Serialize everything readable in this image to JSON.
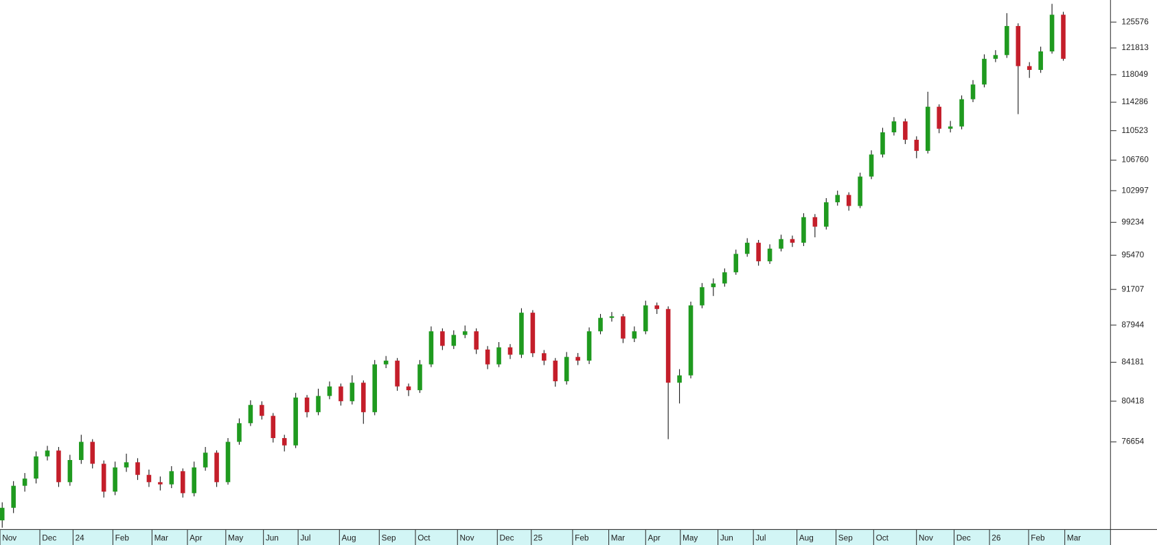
{
  "chart_data": {
    "type": "candlestick",
    "log_scale": true,
    "up_color": "#1f9a1f",
    "down_color": "#c41e2a",
    "ylim": [
      69210,
      128880
    ],
    "yticks": [
      76654,
      80418,
      84181,
      87944,
      91707,
      95470,
      99234,
      102997,
      106760,
      110523,
      114286,
      118049,
      121813,
      125576
    ],
    "x_axis_labels": [
      "Nov",
      "Dec",
      "24",
      "Feb",
      "Mar",
      "Apr",
      "May",
      "Jun",
      "Jul",
      "Aug",
      "Sep",
      "Oct",
      "Nov",
      "Dec",
      "25",
      "Feb",
      "Mar",
      "Apr",
      "May",
      "Jun",
      "Jul",
      "Aug",
      "Sep",
      "Oct",
      "Nov",
      "Dec",
      "26",
      "Feb",
      "Mar"
    ],
    "open": [
      69900,
      70940,
      72800,
      73420,
      75360,
      75880,
      73110,
      75040,
      76660,
      74710,
      72300,
      74390,
      74840,
      73740,
      73110,
      72920,
      74060,
      72170,
      74390,
      75690,
      73110,
      76660,
      78360,
      80060,
      79040,
      77000,
      76340,
      80760,
      79380,
      80910,
      81820,
      80410,
      82180,
      79380,
      83970,
      84340,
      81820,
      81460,
      83970,
      87300,
      85820,
      86930,
      87300,
      85450,
      83970,
      85670,
      84930,
      89230,
      85080,
      84340,
      82320,
      84710,
      84340,
      87300,
      88690,
      88850,
      86560,
      87300,
      90000,
      89620,
      82180,
      82890,
      90000,
      91950,
      92350,
      93570,
      95620,
      96880,
      94790,
      96210,
      97300,
      96880,
      99840,
      98730,
      101600,
      102480,
      101160,
      104720,
      107470,
      110310,
      111740,
      109350,
      107930,
      113680,
      110780,
      111070,
      114690,
      116690,
      120270,
      120800,
      125000,
      119240,
      118710,
      121320,
      126670
    ],
    "high": [
      71400,
      73200,
      73900,
      75800,
      76300,
      76200,
      75500,
      77300,
      76900,
      75000,
      74900,
      75600,
      75200,
      74200,
      73600,
      74500,
      74300,
      74900,
      76200,
      75900,
      77000,
      78800,
      80500,
      80400,
      79300,
      77300,
      81200,
      81000,
      81600,
      82300,
      82100,
      82900,
      82400,
      84400,
      84800,
      84600,
      82100,
      84400,
      87800,
      87600,
      87400,
      87900,
      87600,
      85800,
      86200,
      86000,
      89700,
      89500,
      85400,
      84600,
      85200,
      85100,
      87700,
      89100,
      89300,
      89100,
      87800,
      90500,
      90300,
      89900,
      83500,
      90400,
      92400,
      92900,
      94000,
      96100,
      97400,
      97200,
      96700,
      97800,
      97700,
      100300,
      100200,
      102100,
      103000,
      102800,
      105200,
      108000,
      110900,
      112300,
      112100,
      109800,
      115700,
      114000,
      111800,
      115200,
      117300,
      120900,
      121500,
      126900,
      125400,
      119800,
      122000,
      128300,
      127100
    ],
    "low": [
      69300,
      70500,
      72300,
      73000,
      75000,
      72700,
      72800,
      74700,
      74300,
      71800,
      72000,
      74000,
      73300,
      72700,
      72400,
      72600,
      71800,
      71900,
      74100,
      72700,
      72900,
      76400,
      78100,
      78700,
      76600,
      75800,
      76100,
      78900,
      79100,
      80600,
      80000,
      80100,
      78300,
      79100,
      83600,
      81400,
      80900,
      81200,
      83700,
      85400,
      85500,
      86600,
      85000,
      83500,
      83700,
      84500,
      84600,
      84700,
      83900,
      81800,
      82000,
      83900,
      84000,
      87000,
      88300,
      86100,
      86200,
      87000,
      89100,
      76900,
      80200,
      82600,
      89700,
      91000,
      92000,
      93300,
      95300,
      94300,
      94500,
      95900,
      96400,
      96500,
      97500,
      98400,
      101200,
      100600,
      100900,
      104400,
      107100,
      109900,
      108800,
      107000,
      107600,
      110200,
      110300,
      110700,
      114300,
      116300,
      119800,
      120400,
      112700,
      117600,
      118300,
      121000,
      120000
    ],
    "close": [
      70940,
      72800,
      73420,
      75360,
      75880,
      73110,
      75040,
      76660,
      74710,
      72300,
      74390,
      74840,
      73740,
      73110,
      72920,
      74060,
      72170,
      74390,
      75690,
      73110,
      76660,
      78360,
      80060,
      79040,
      77000,
      76340,
      80760,
      79380,
      80910,
      81820,
      80410,
      82180,
      79380,
      83970,
      84340,
      81820,
      81460,
      83970,
      87300,
      85820,
      86930,
      87300,
      85450,
      83970,
      85670,
      84930,
      89230,
      85080,
      84340,
      82320,
      84710,
      84340,
      87300,
      88690,
      88850,
      86560,
      87300,
      90000,
      89620,
      82180,
      82890,
      90000,
      91950,
      92350,
      93570,
      95620,
      96880,
      94790,
      96210,
      97300,
      96880,
      99840,
      98730,
      101600,
      102480,
      101160,
      104720,
      107470,
      110310,
      111740,
      109350,
      107930,
      113680,
      110780,
      111070,
      114690,
      116690,
      120270,
      120800,
      125000,
      119240,
      118710,
      121320,
      126670,
      120270
    ]
  }
}
